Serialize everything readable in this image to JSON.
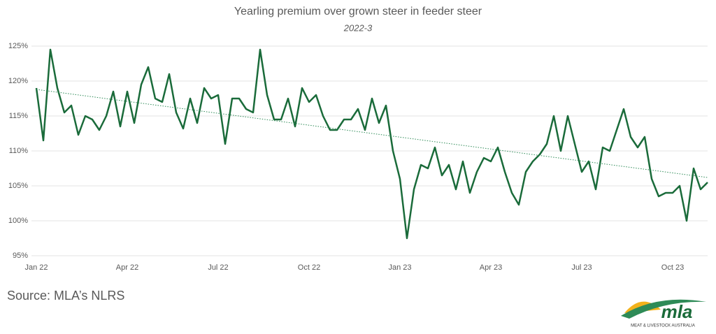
{
  "chart_data": {
    "type": "line",
    "title": "Yearling premium over grown steer in feeder steer",
    "subtitle": "2022-3",
    "source": "Source: MLA’s NLRS",
    "logo": {
      "name": "mla",
      "tagline": "MEAT & LIVESTOCK AUSTRALIA"
    },
    "categories": [
      "Jan 22",
      null,
      null,
      null,
      null,
      null,
      null,
      null,
      null,
      null,
      null,
      null,
      null,
      "Apr 22",
      null,
      null,
      null,
      null,
      null,
      null,
      null,
      null,
      null,
      null,
      null,
      null,
      "Jul 22",
      null,
      null,
      null,
      null,
      null,
      null,
      null,
      null,
      null,
      null,
      null,
      null,
      "Oct 22",
      null,
      null,
      null,
      null,
      null,
      null,
      null,
      null,
      null,
      null,
      null,
      null,
      "Jan 23",
      null,
      null,
      null,
      null,
      null,
      null,
      null,
      null,
      null,
      null,
      null,
      null,
      "Apr 23",
      null,
      null,
      null,
      null,
      null,
      null,
      null,
      null,
      null,
      null,
      null,
      null,
      "Jul 23",
      null,
      null,
      null,
      null,
      null,
      null,
      null,
      null,
      null,
      null,
      null,
      null,
      "Oct 23",
      null,
      null,
      null,
      null,
      null
    ],
    "series": [
      {
        "color": "#1a6b3a",
        "values": [
          119,
          111.5,
          124.5,
          119,
          115.5,
          116.5,
          112.3,
          115,
          114.5,
          113,
          115,
          118.5,
          113.5,
          118.5,
          114,
          119.5,
          122,
          117.5,
          117,
          121,
          115.5,
          113.2,
          117.5,
          114,
          119,
          117.5,
          118,
          111,
          117.5,
          117.5,
          116,
          115.5,
          124.5,
          118,
          114.5,
          114.5,
          117.5,
          113.5,
          119,
          117,
          118,
          115,
          113,
          113,
          114.5,
          114.5,
          116,
          113,
          117.5,
          114,
          116.5,
          110,
          106,
          97.5,
          104.5,
          108,
          107.5,
          110.5,
          106.5,
          108,
          104.5,
          108.5,
          104,
          107,
          109,
          108.5,
          110.5,
          107,
          104,
          102.3,
          107,
          108.5,
          109.5,
          111,
          115,
          110,
          115,
          111,
          107,
          108.5,
          104.5,
          110.5,
          110,
          113,
          116,
          112,
          110.5,
          112,
          106,
          103.5,
          104,
          104,
          105,
          100,
          107.5,
          104.5,
          105.5
        ]
      }
    ],
    "trend": {
      "color": "#2e8b57",
      "values": [
        118.8,
        106.2
      ]
    },
    "ylim": [
      95,
      125
    ],
    "yticks": [
      {
        "value": 95,
        "label": "95%"
      },
      {
        "value": 100,
        "label": "100%"
      },
      {
        "value": 105,
        "label": "105%"
      },
      {
        "value": 110,
        "label": "110%"
      },
      {
        "value": 115,
        "label": "115%"
      },
      {
        "value": 120,
        "label": "120%"
      },
      {
        "value": 125,
        "label": "125%"
      }
    ],
    "grid": true
  }
}
